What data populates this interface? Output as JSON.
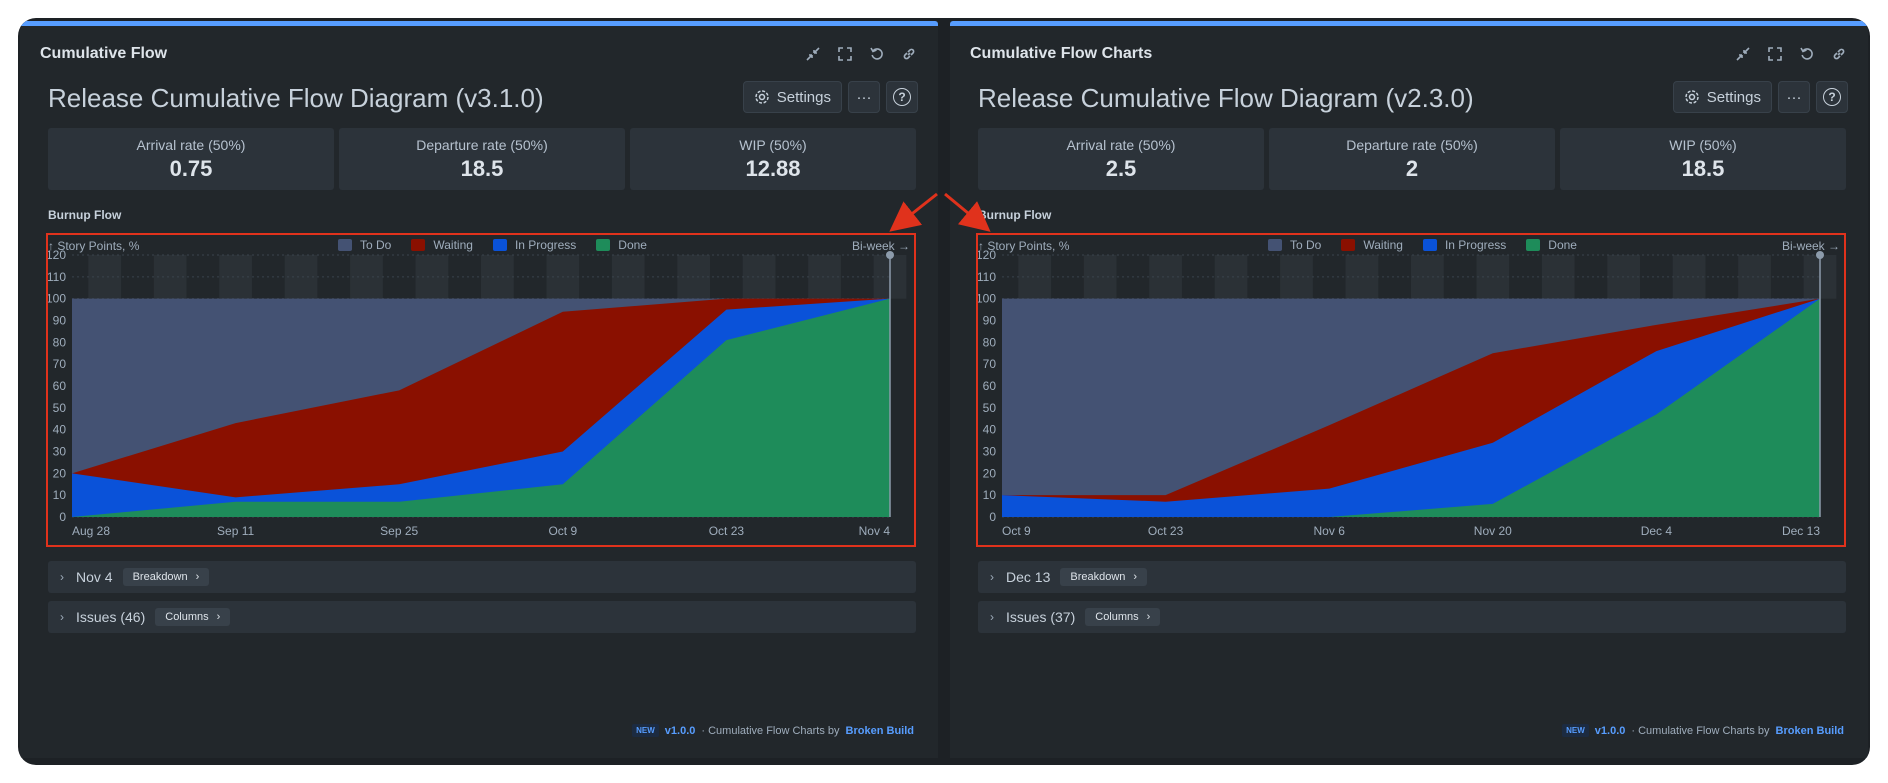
{
  "panels": [
    {
      "gadget_title": "Cumulative Flow",
      "report_title": "Release Cumulative Flow Diagram (v3.1.0)",
      "settings_label": "Settings",
      "more_label": "···",
      "help_label": "?",
      "stats": [
        {
          "label": "Arrival rate (50%)",
          "value": "0.75"
        },
        {
          "label": "Departure rate (50%)",
          "value": "18.5"
        },
        {
          "label": "WIP (50%)",
          "value": "12.88"
        }
      ],
      "section_title": "Burnup Flow",
      "y_axis_label": "↑ Story Points, %",
      "period_label": "Bi-week →",
      "breakdown": {
        "date": "Nov 4",
        "button": "Breakdown"
      },
      "issues": {
        "label": "Issues (46)",
        "button": "Columns"
      },
      "footer": {
        "badge": "NEW",
        "version": "v1.0.0",
        "text": "· Cumulative Flow Charts by",
        "brand": "Broken Build"
      }
    },
    {
      "gadget_title": "Cumulative Flow Charts",
      "report_title": "Release Cumulative Flow Diagram (v2.3.0)",
      "settings_label": "Settings",
      "more_label": "···",
      "help_label": "?",
      "stats": [
        {
          "label": "Arrival rate (50%)",
          "value": "2.5"
        },
        {
          "label": "Departure rate (50%)",
          "value": "2"
        },
        {
          "label": "WIP (50%)",
          "value": "18.5"
        }
      ],
      "section_title": "Burnup Flow",
      "y_axis_label": "↑ Story Points, %",
      "period_label": "Bi-week →",
      "breakdown": {
        "date": "Dec 13",
        "button": "Breakdown"
      },
      "issues": {
        "label": "Issues (37)",
        "button": "Columns"
      },
      "footer": {
        "badge": "NEW",
        "version": "v1.0.0",
        "text": "· Cumulative Flow Charts by",
        "brand": "Broken Build"
      }
    }
  ],
  "legend": [
    {
      "name": "To Do",
      "color": "#445273"
    },
    {
      "name": "Waiting",
      "color": "#8a1000"
    },
    {
      "name": "In Progress",
      "color": "#0a52d9"
    },
    {
      "name": "Done",
      "color": "#1e8c5a"
    }
  ],
  "chart_data": [
    {
      "type": "area",
      "title": "Burnup Flow",
      "ylabel": "Story Points, %",
      "ylim": [
        0,
        120
      ],
      "yticks": [
        0,
        10,
        20,
        30,
        40,
        50,
        60,
        70,
        80,
        90,
        100,
        110,
        120
      ],
      "categories": [
        "Aug 28",
        "Sep 11",
        "Sep 25",
        "Oct 9",
        "Oct 23",
        "Nov 4"
      ],
      "series": [
        {
          "name": "Done",
          "values": [
            0,
            7,
            7,
            15,
            81,
            100
          ]
        },
        {
          "name": "In Progress",
          "values": [
            20,
            9,
            15,
            30,
            95,
            100
          ]
        },
        {
          "name": "Waiting",
          "values": [
            20,
            43,
            58,
            94,
            100,
            100
          ]
        },
        {
          "name": "To Do",
          "values": [
            100,
            100,
            100,
            100,
            100,
            100
          ]
        }
      ]
    },
    {
      "type": "area",
      "title": "Burnup Flow",
      "ylabel": "Story Points, %",
      "ylim": [
        0,
        120
      ],
      "yticks": [
        0,
        10,
        20,
        30,
        40,
        50,
        60,
        70,
        80,
        90,
        100,
        110,
        120
      ],
      "categories": [
        "Oct 9",
        "Oct 23",
        "Nov 6",
        "Nov 20",
        "Dec 4",
        "Dec 13"
      ],
      "series": [
        {
          "name": "Done",
          "values": [
            0,
            0,
            0,
            6,
            47,
            100
          ]
        },
        {
          "name": "In Progress",
          "values": [
            10,
            7,
            13,
            34,
            76,
            100
          ]
        },
        {
          "name": "Waiting",
          "values": [
            10,
            10,
            42,
            75,
            88,
            100
          ]
        },
        {
          "name": "To Do",
          "values": [
            100,
            100,
            100,
            100,
            100,
            100
          ]
        }
      ]
    }
  ]
}
